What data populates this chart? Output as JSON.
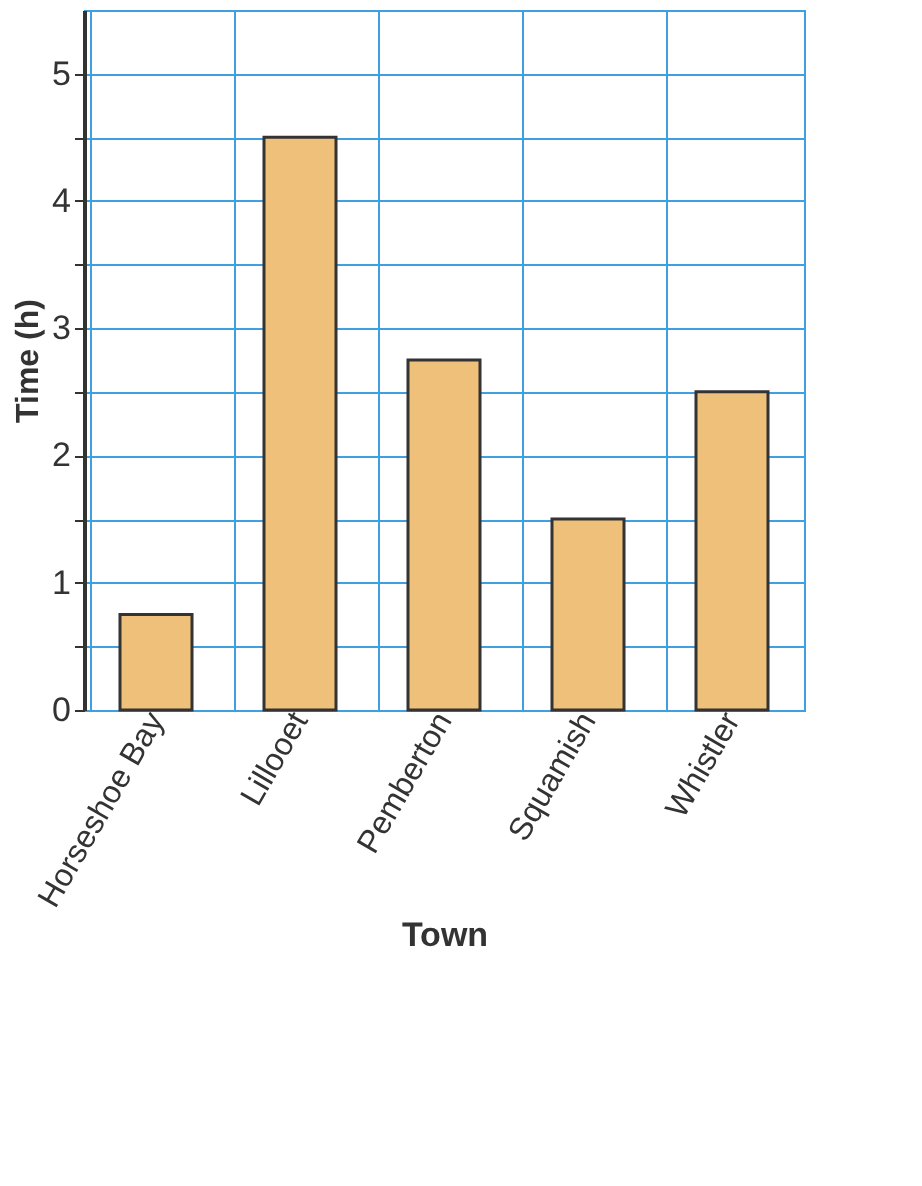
{
  "chart_data": {
    "type": "bar",
    "xlabel": "Town",
    "ylabel": "Time (h)",
    "categories": [
      "Horseshoe Bay",
      "Lillooet",
      "Pemberton",
      "Squamish",
      "Whistler"
    ],
    "values": [
      0.75,
      4.5,
      2.75,
      1.5,
      2.5
    ],
    "color": "#efc07a",
    "ylim": [
      0,
      5.5
    ],
    "yticks": [
      0,
      {
        "value": 0.5,
        "label": null
      },
      1,
      {
        "value": 1.5,
        "label": null
      },
      2,
      {
        "value": 2.5,
        "label": null
      },
      3,
      {
        "value": 3.5,
        "label": null
      },
      4,
      {
        "value": 4.5,
        "label": null
      },
      5
    ],
    "grid": true
  }
}
